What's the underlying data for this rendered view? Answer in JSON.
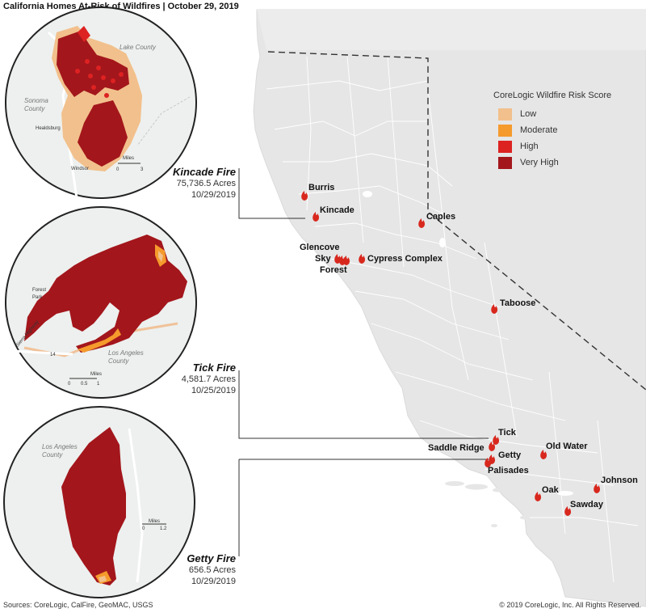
{
  "title": "California Homes At-Risk of Wildfires | October 29, 2019",
  "sources": "Sources: CoreLogic, CalFire, GeoMAC, USGS",
  "copyright": "© 2019 CoreLogic, Inc. All Rights Reserved.",
  "legend": {
    "title": "CoreLogic Wildfire Risk Score",
    "items": [
      {
        "label": "Low",
        "color": "#f2c08c"
      },
      {
        "label": "Moderate",
        "color": "#f59a2c"
      },
      {
        "label": "High",
        "color": "#dd2222"
      },
      {
        "label": "Very High",
        "color": "#a3161c"
      }
    ]
  },
  "callouts": [
    {
      "name": "Kincade Fire",
      "acres": "75,736.5 Acres",
      "date": "10/29/2019"
    },
    {
      "name": "Tick Fire",
      "acres": "4,581.7 Acres",
      "date": "10/25/2019"
    },
    {
      "name": "Getty Fire",
      "acres": "656.5 Acres",
      "date": "10/29/2019"
    }
  ],
  "fires": [
    "Burris",
    "Kincade",
    "Caples",
    "Glencove",
    "Sky",
    "Forest",
    "Cypress Complex",
    "Taboose",
    "Tick",
    "Saddle Ridge",
    "Getty",
    "Palisades",
    "Old Water",
    "Oak",
    "Johnson",
    "Sawday"
  ],
  "insets": {
    "kincade": {
      "region1": "Lake County",
      "region2": "Sonoma County",
      "town1": "Healdsburg",
      "town2": "Windsor",
      "scale_unit": "Miles",
      "scale_0": "0",
      "scale_end": "3"
    },
    "tick": {
      "region1": "Forest Park",
      "region2": "Los Angeles County",
      "road": "Sierra Highway",
      "route": "14",
      "scale_unit": "Miles",
      "scale_0": "0",
      "scale_mid": "0.5",
      "scale_end": "1"
    },
    "getty": {
      "region1": "Los Angeles County",
      "scale_unit": "Miles",
      "scale_0": "0",
      "scale_end": "1.2"
    }
  },
  "colors": {
    "land": "#e6e6e6",
    "border": "#ffffff",
    "water": "#ffffff",
    "fire_icon": "#d8281e"
  }
}
